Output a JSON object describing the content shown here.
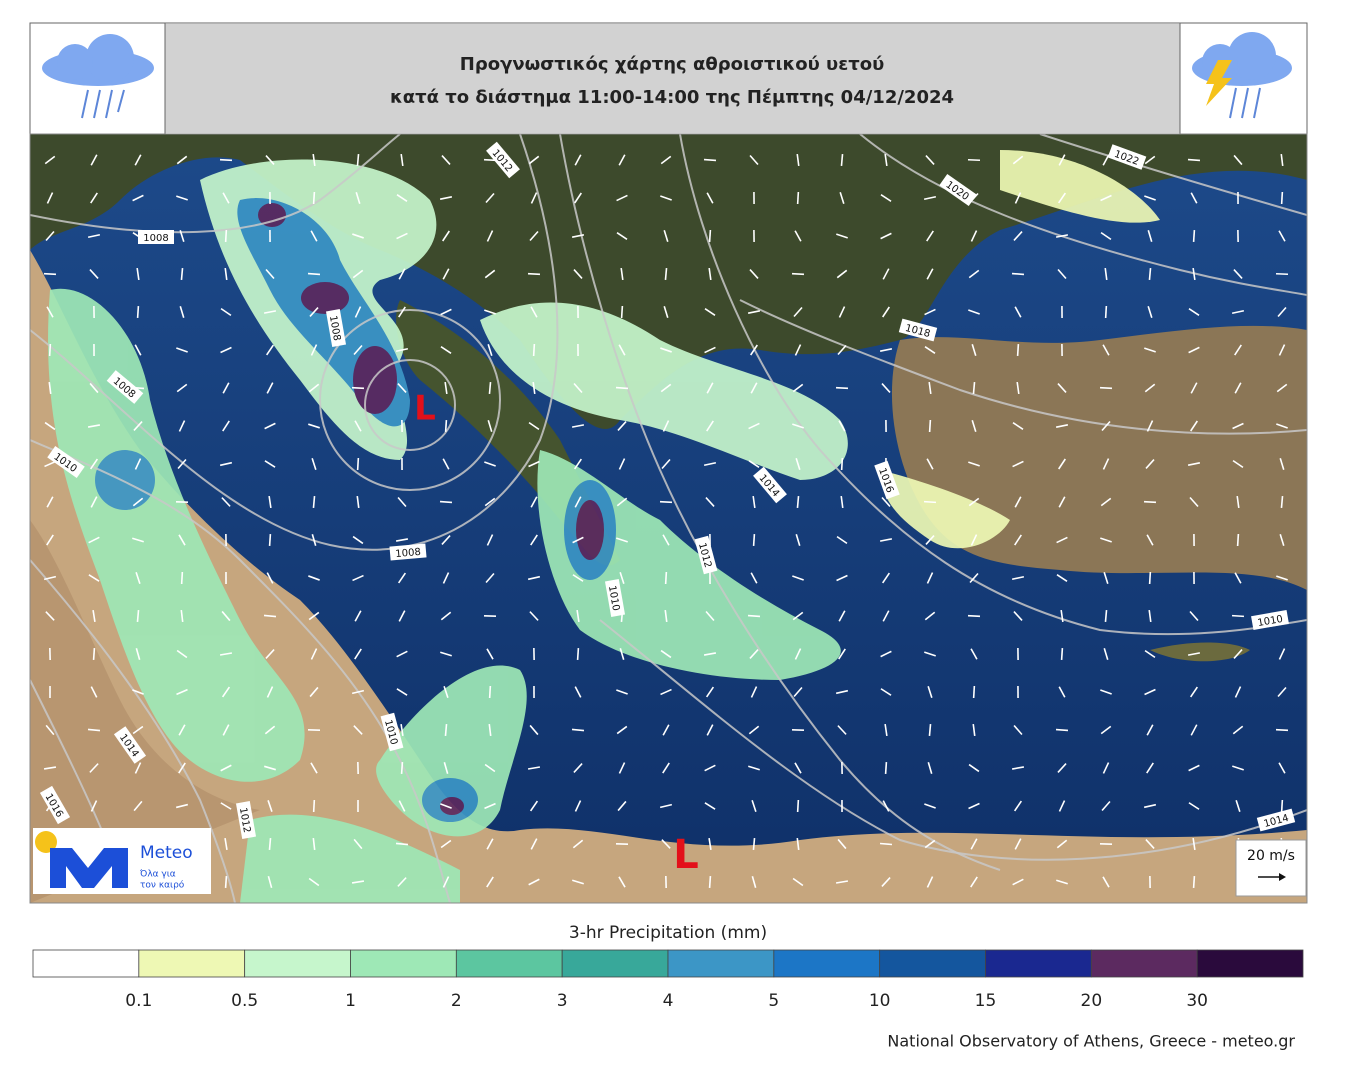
{
  "header": {
    "title_line1": "Προγνωστικός χάρτης αθροιστικού υετού",
    "title_line2": "κατά το διάστημα 11:00-14:00 της Πέμπτης 04/12/2024"
  },
  "map": {
    "isobar_labels": [
      "1012",
      "1020",
      "1022",
      "1008",
      "1008",
      "1018",
      "1008",
      "1010",
      "1008",
      "1014",
      "1016",
      "1012",
      "1010",
      "1010",
      "1010",
      "1014",
      "1016",
      "1012",
      "1014"
    ],
    "lows": [
      "L",
      "L"
    ],
    "wind_scale": "20 m/s"
  },
  "logo": {
    "name": "Meteo",
    "tagline_1": "Όλα για",
    "tagline_2": "τον καιρό"
  },
  "colorbar": {
    "title": "3-hr Precipitation (mm)",
    "colors": [
      "#ffffff",
      "#eef8b4",
      "#c6f6cc",
      "#9ee8b6",
      "#5cc6a0",
      "#38a89a",
      "#3c96c6",
      "#1c76c6",
      "#14569e",
      "#1a2890",
      "#5c2a60",
      "#2a0a3c"
    ],
    "ticks": [
      0.1,
      0.5,
      1,
      2,
      3,
      4,
      5,
      10,
      15,
      20,
      30
    ]
  },
  "footer": "National Observatory of Athens, Greece - meteo.gr"
}
